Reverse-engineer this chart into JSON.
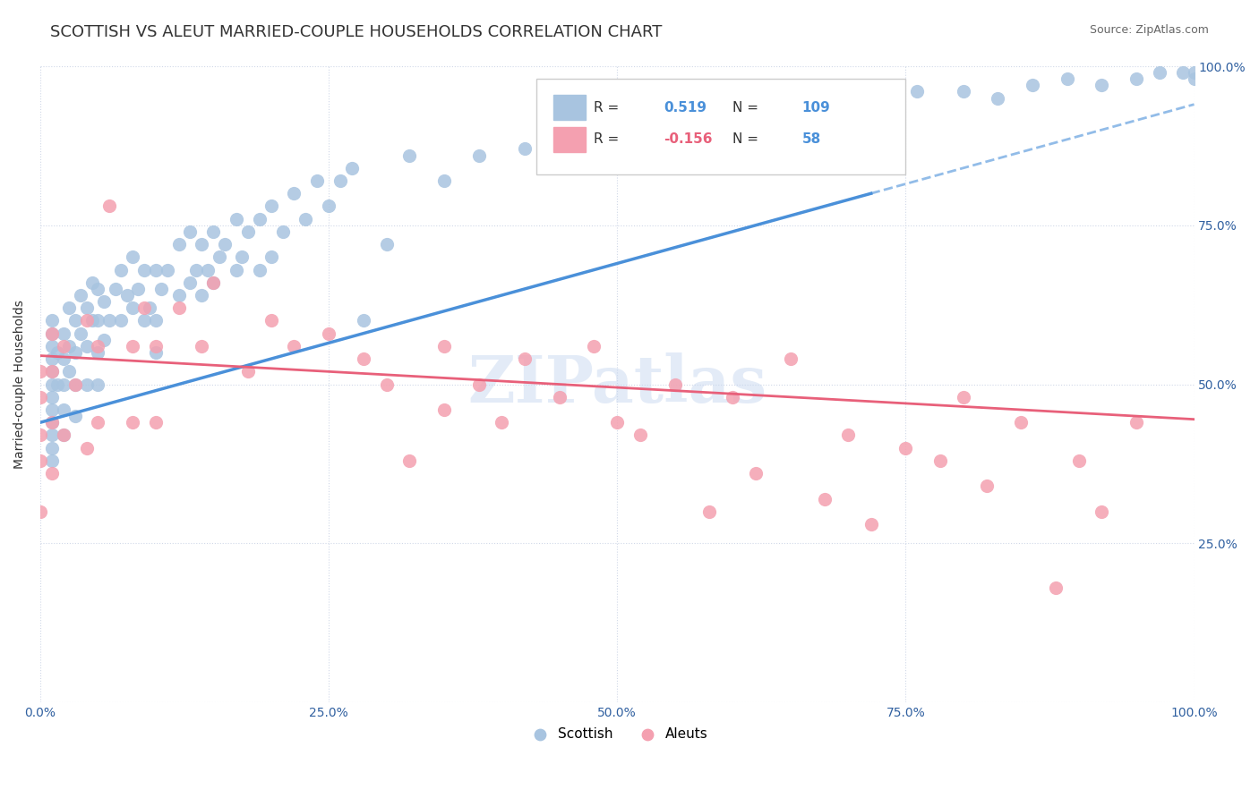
{
  "title": "SCOTTISH VS ALEUT MARRIED-COUPLE HOUSEHOLDS CORRELATION CHART",
  "source": "Source: ZipAtlas.com",
  "xlabel": "",
  "ylabel": "Married-couple Households",
  "xlim": [
    0.0,
    1.0
  ],
  "ylim": [
    0.0,
    1.0
  ],
  "xticks": [
    0.0,
    0.25,
    0.5,
    0.75,
    1.0
  ],
  "yticks": [
    0.0,
    0.25,
    0.5,
    0.75,
    1.0
  ],
  "xticklabels": [
    "0.0%",
    "25.0%",
    "50.0%",
    "75.0%",
    "100.0%"
  ],
  "yticklabels": [
    "",
    "25.0%",
    "50.0%",
    "75.0%",
    "100.0%"
  ],
  "right_yticklabels": [
    "25.0%",
    "50.0%",
    "75.0%",
    "100.0%"
  ],
  "scottish_R": 0.519,
  "scottish_N": 109,
  "aleut_R": -0.156,
  "aleut_N": 58,
  "scottish_color": "#a8c4e0",
  "aleut_color": "#f4a0b0",
  "scottish_line_color": "#4a90d9",
  "aleut_line_color": "#e8607a",
  "background_color": "#ffffff",
  "grid_color": "#d0d8e8",
  "watermark": "ZIPatlas",
  "watermark_color": "#c8d8f0",
  "title_fontsize": 13,
  "axis_label_fontsize": 10,
  "tick_fontsize": 10,
  "scottish_x": [
    0.01,
    0.01,
    0.01,
    0.01,
    0.01,
    0.01,
    0.01,
    0.01,
    0.01,
    0.01,
    0.01,
    0.01,
    0.015,
    0.015,
    0.02,
    0.02,
    0.02,
    0.02,
    0.02,
    0.025,
    0.025,
    0.025,
    0.03,
    0.03,
    0.03,
    0.03,
    0.035,
    0.035,
    0.04,
    0.04,
    0.04,
    0.045,
    0.045,
    0.05,
    0.05,
    0.05,
    0.05,
    0.055,
    0.055,
    0.06,
    0.065,
    0.07,
    0.07,
    0.075,
    0.08,
    0.08,
    0.085,
    0.09,
    0.09,
    0.095,
    0.1,
    0.1,
    0.1,
    0.105,
    0.11,
    0.12,
    0.12,
    0.13,
    0.13,
    0.135,
    0.14,
    0.14,
    0.145,
    0.15,
    0.15,
    0.155,
    0.16,
    0.17,
    0.17,
    0.175,
    0.18,
    0.19,
    0.19,
    0.2,
    0.2,
    0.21,
    0.22,
    0.23,
    0.24,
    0.25,
    0.26,
    0.27,
    0.28,
    0.3,
    0.32,
    0.35,
    0.38,
    0.42,
    0.46,
    0.5,
    0.52,
    0.55,
    0.58,
    0.62,
    0.65,
    0.68,
    0.7,
    0.73,
    0.76,
    0.8,
    0.83,
    0.86,
    0.89,
    0.92,
    0.95,
    0.97,
    0.99,
    1.0,
    1.0
  ],
  "scottish_y": [
    0.5,
    0.52,
    0.54,
    0.56,
    0.46,
    0.48,
    0.44,
    0.42,
    0.58,
    0.6,
    0.4,
    0.38,
    0.55,
    0.5,
    0.58,
    0.54,
    0.5,
    0.46,
    0.42,
    0.62,
    0.56,
    0.52,
    0.6,
    0.55,
    0.5,
    0.45,
    0.64,
    0.58,
    0.62,
    0.56,
    0.5,
    0.66,
    0.6,
    0.65,
    0.6,
    0.55,
    0.5,
    0.63,
    0.57,
    0.6,
    0.65,
    0.68,
    0.6,
    0.64,
    0.7,
    0.62,
    0.65,
    0.68,
    0.6,
    0.62,
    0.68,
    0.6,
    0.55,
    0.65,
    0.68,
    0.72,
    0.64,
    0.74,
    0.66,
    0.68,
    0.72,
    0.64,
    0.68,
    0.74,
    0.66,
    0.7,
    0.72,
    0.76,
    0.68,
    0.7,
    0.74,
    0.76,
    0.68,
    0.78,
    0.7,
    0.74,
    0.8,
    0.76,
    0.82,
    0.78,
    0.82,
    0.84,
    0.6,
    0.72,
    0.86,
    0.82,
    0.86,
    0.87,
    0.88,
    0.86,
    0.9,
    0.88,
    0.92,
    0.94,
    0.9,
    0.94,
    0.94,
    0.92,
    0.96,
    0.96,
    0.95,
    0.97,
    0.98,
    0.97,
    0.98,
    0.99,
    0.99,
    0.99,
    0.98
  ],
  "aleut_x": [
    0.0,
    0.0,
    0.0,
    0.0,
    0.0,
    0.01,
    0.01,
    0.01,
    0.01,
    0.02,
    0.02,
    0.03,
    0.04,
    0.04,
    0.05,
    0.05,
    0.06,
    0.08,
    0.08,
    0.09,
    0.1,
    0.1,
    0.12,
    0.14,
    0.15,
    0.18,
    0.2,
    0.22,
    0.25,
    0.28,
    0.3,
    0.32,
    0.35,
    0.35,
    0.38,
    0.4,
    0.42,
    0.45,
    0.48,
    0.5,
    0.52,
    0.55,
    0.58,
    0.6,
    0.62,
    0.65,
    0.68,
    0.7,
    0.72,
    0.75,
    0.78,
    0.8,
    0.82,
    0.85,
    0.88,
    0.9,
    0.92,
    0.95
  ],
  "aleut_y": [
    0.52,
    0.48,
    0.42,
    0.38,
    0.3,
    0.58,
    0.52,
    0.44,
    0.36,
    0.56,
    0.42,
    0.5,
    0.6,
    0.4,
    0.56,
    0.44,
    0.78,
    0.56,
    0.44,
    0.62,
    0.56,
    0.44,
    0.62,
    0.56,
    0.66,
    0.52,
    0.6,
    0.56,
    0.58,
    0.54,
    0.5,
    0.38,
    0.56,
    0.46,
    0.5,
    0.44,
    0.54,
    0.48,
    0.56,
    0.44,
    0.42,
    0.5,
    0.3,
    0.48,
    0.36,
    0.54,
    0.32,
    0.42,
    0.28,
    0.4,
    0.38,
    0.48,
    0.34,
    0.44,
    0.18,
    0.38,
    0.3,
    0.44
  ]
}
